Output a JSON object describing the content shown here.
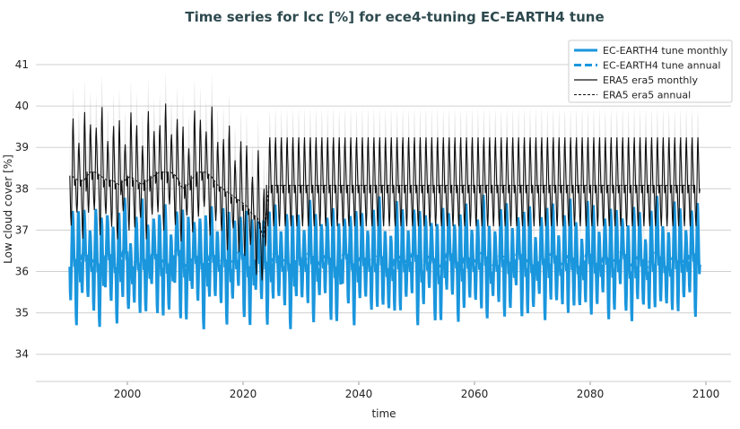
{
  "chart_data": {
    "type": "line",
    "title": "Time series for lcc [%] for ece4-tuning EC-EARTH4 tune",
    "xlabel": "time",
    "ylabel": "Low cloud cover [%]",
    "xlim": [
      1985,
      2104
    ],
    "ylim": [
      33.4,
      41.6
    ],
    "xticks": [
      2000,
      2020,
      2040,
      2060,
      2080,
      2100
    ],
    "yticks": [
      34,
      35,
      36,
      37,
      38,
      39,
      40,
      41
    ],
    "grid": "horizontal",
    "legend_position": "top-right",
    "series": [
      {
        "name": "EC-EARTH4 tune monthly",
        "color": "#1a96dd",
        "style": "solid-thick",
        "start_year": 1990,
        "monthly_climatology": [
          36.0,
          35.3,
          35.1,
          35.7,
          36.5,
          37.1,
          37.5,
          37.3,
          36.8,
          36.3,
          36.0,
          36.2
        ],
        "annual_means": [
          36.4,
          36.1,
          36.5,
          36.2,
          36.3,
          36.0,
          36.5,
          36.2,
          36.1,
          36.6,
          35.9,
          36.3,
          36.4,
          36.1,
          36.5,
          36.2,
          36.3,
          36.0,
          36.6,
          36.2,
          36.1,
          36.4,
          36.3,
          36.0,
          36.5,
          36.2,
          36.4,
          36.1,
          36.3,
          36.5,
          36.2,
          36.0,
          36.4,
          36.3,
          36.1,
          36.5,
          36.2,
          36.3,
          36.0,
          36.4,
          36.2,
          36.5,
          36.1,
          36.3,
          36.4,
          36.2,
          36.0,
          36.5,
          36.3,
          36.1,
          36.4,
          36.2,
          36.3,
          36.5,
          36.1,
          36.0,
          36.4,
          36.3,
          36.2,
          36.5,
          36.1,
          36.3,
          36.4,
          36.0,
          36.2,
          36.5,
          36.3,
          36.1,
          36.4,
          36.2,
          36.3,
          36.5,
          36.0,
          36.2,
          36.4,
          36.3,
          36.1,
          36.5,
          36.2,
          36.3,
          36.0,
          36.4,
          36.2,
          36.5,
          36.1,
          36.3,
          36.4,
          36.2,
          36.0,
          36.5,
          36.3,
          36.1,
          36.4,
          36.2,
          36.3,
          36.5,
          36.1,
          36.2,
          36.4,
          36.0,
          36.3,
          36.5,
          36.2,
          36.1,
          36.4,
          36.3,
          36.2,
          36.5,
          36.3
        ]
      },
      {
        "name": "EC-EARTH4 tune annual",
        "color": "#1a96dd",
        "style": "dashed-thick"
      },
      {
        "name": "ERA5 era5 monthly",
        "color": "#111111",
        "style": "solid-thin",
        "monthly_climatology": [
          38.0,
          37.6,
          37.2,
          37.0,
          37.3,
          38.1,
          38.9,
          39.15,
          38.7,
          38.2,
          37.8,
          37.9
        ],
        "annual_means_1990_2023": [
          38.3,
          38.2,
          38.2,
          38.4,
          38.4,
          38.3,
          38.2,
          38.2,
          38.1,
          38.2,
          38.3,
          38.2,
          38.1,
          38.2,
          38.3,
          38.4,
          38.4,
          38.4,
          38.3,
          38.0,
          38.1,
          38.3,
          38.4,
          38.4,
          38.3,
          38.1,
          38.0,
          37.9,
          37.8,
          37.7,
          37.6,
          37.4,
          37.3,
          36.8
        ],
        "climatology_annual_mean_2024_2098": 38.08
      },
      {
        "name": "ERA5 era5 annual",
        "color": "#111111",
        "style": "dashed-thin"
      }
    ]
  }
}
